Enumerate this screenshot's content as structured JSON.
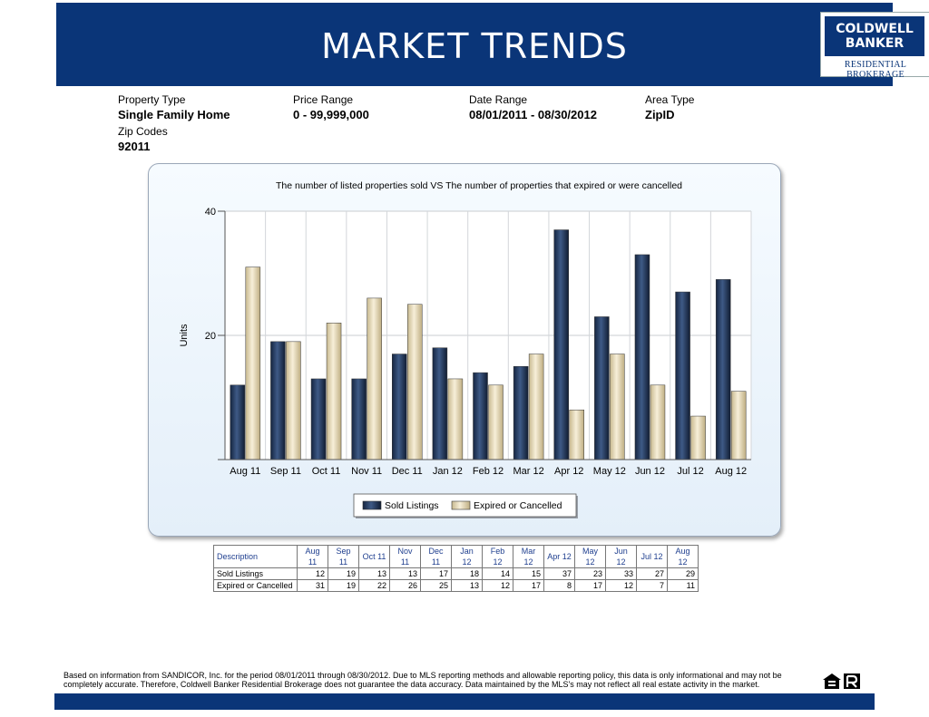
{
  "header": {
    "title": "MARKET TRENDS",
    "logo_line1": "COLDWELL",
    "logo_line2": "BANKER",
    "logo_sub": "RESIDENTIAL BROKERAGE"
  },
  "filters": {
    "property_type_label": "Property Type",
    "property_type_value": "Single Family Home",
    "price_range_label": "Price Range",
    "price_range_value": "0 - 99,999,000",
    "date_range_label": "Date Range",
    "date_range_value": "08/01/2011 - 08/30/2012",
    "area_type_label": "Area Type",
    "area_type_value": "ZipID",
    "zip_codes_label": "Zip Codes",
    "zip_codes_value": "92011"
  },
  "chart_data": {
    "type": "bar",
    "title": "The number of listed properties sold VS The number of properties that expired or were cancelled",
    "ylabel": "Units",
    "xlabel": "",
    "ylim": [
      0,
      40
    ],
    "yticks": [
      20,
      40
    ],
    "grid": true,
    "legend_position": "bottom",
    "categories": [
      "Aug 11",
      "Sep 11",
      "Oct 11",
      "Nov 11",
      "Dec 11",
      "Jan 12",
      "Feb 12",
      "Mar 12",
      "Apr 12",
      "May 12",
      "Jun 12",
      "Jul 12",
      "Aug 12"
    ],
    "series": [
      {
        "name": "Sold Listings",
        "color": "#1d2f4f",
        "values": [
          12,
          19,
          13,
          13,
          17,
          18,
          14,
          15,
          37,
          23,
          33,
          27,
          29
        ]
      },
      {
        "name": "Expired or Cancelled",
        "color": "#e8dcb8",
        "values": [
          31,
          19,
          22,
          26,
          25,
          13,
          12,
          17,
          8,
          17,
          12,
          7,
          11
        ]
      }
    ]
  },
  "table": {
    "header_label": "Description"
  },
  "footer": {
    "line1": "Based on information from SANDICOR, Inc. for the period 08/01/2011 through 08/30/2012.  Due to MLS reporting methods and allowable reporting policy, this data is only informational and may not be",
    "line2": "completely accurate.  Therefore, Coldwell Banker Residential Brokerage does not guarantee the data accuracy.   Data maintained by the MLS's may not reflect all real estate activity in the market."
  }
}
